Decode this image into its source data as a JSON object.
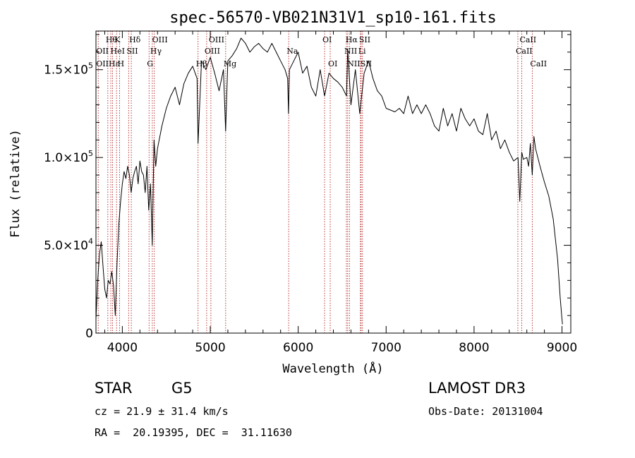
{
  "chart_data": {
    "type": "line",
    "title": "spec-56570-VB021N31V1_sp10-161.fits",
    "xlabel": "Wavelength (Å)",
    "ylabel": "Flux (relative)",
    "xlim": [
      3700,
      9100
    ],
    "ylim": [
      0,
      172000
    ],
    "x_ticks": [
      {
        "value": 4000,
        "label": "4000"
      },
      {
        "value": 5000,
        "label": "5000"
      },
      {
        "value": 6000,
        "label": "6000"
      },
      {
        "value": 7000,
        "label": "7000"
      },
      {
        "value": 8000,
        "label": "8000"
      },
      {
        "value": 9000,
        "label": "9000"
      }
    ],
    "y_ticks": [
      {
        "value": 0,
        "mantissa": "0",
        "exp": ""
      },
      {
        "value": 50000,
        "mantissa": "5.0×10",
        "exp": "4"
      },
      {
        "value": 100000,
        "mantissa": "1.0×10",
        "exp": "5"
      },
      {
        "value": 150000,
        "mantissa": "1.5×10",
        "exp": "5"
      }
    ],
    "series": [
      {
        "name": "flux",
        "x": [
          3700,
          3720,
          3740,
          3760,
          3780,
          3800,
          3820,
          3840,
          3860,
          3880,
          3900,
          3920,
          3940,
          3960,
          3980,
          4000,
          4020,
          4040,
          4060,
          4080,
          4100,
          4120,
          4140,
          4160,
          4180,
          4200,
          4220,
          4240,
          4260,
          4280,
          4300,
          4320,
          4340,
          4360,
          4380,
          4400,
          4450,
          4500,
          4550,
          4600,
          4650,
          4700,
          4750,
          4800,
          4850,
          4861,
          4900,
          4950,
          5000,
          5050,
          5100,
          5150,
          5175,
          5200,
          5250,
          5300,
          5350,
          5400,
          5450,
          5500,
          5550,
          5600,
          5650,
          5700,
          5750,
          5800,
          5850,
          5880,
          5890,
          5900,
          5950,
          6000,
          6050,
          6100,
          6150,
          6200,
          6250,
          6300,
          6350,
          6400,
          6450,
          6500,
          6550,
          6563,
          6600,
          6650,
          6700,
          6750,
          6800,
          6850,
          6900,
          6950,
          7000,
          7050,
          7100,
          7150,
          7200,
          7250,
          7300,
          7350,
          7400,
          7450,
          7500,
          7550,
          7600,
          7650,
          7700,
          7750,
          7800,
          7850,
          7900,
          7950,
          8000,
          8050,
          8100,
          8150,
          8200,
          8250,
          8300,
          8350,
          8400,
          8450,
          8500,
          8520,
          8542,
          8560,
          8600,
          8620,
          8640,
          8662,
          8680,
          8700,
          8750,
          8800,
          8850,
          8900,
          8950,
          8980,
          9000,
          9005
        ],
        "y": [
          8000,
          30000,
          45000,
          52000,
          38000,
          25000,
          20000,
          30000,
          28000,
          35000,
          27000,
          10000,
          40000,
          62000,
          75000,
          85000,
          92000,
          88000,
          95000,
          90000,
          80000,
          88000,
          92000,
          95000,
          85000,
          98000,
          92000,
          90000,
          80000,
          95000,
          70000,
          85000,
          50000,
          110000,
          95000,
          105000,
          118000,
          128000,
          135000,
          140000,
          130000,
          142000,
          148000,
          152000,
          145000,
          108000,
          155000,
          150000,
          157000,
          148000,
          138000,
          150000,
          115000,
          155000,
          158000,
          162000,
          168000,
          165000,
          160000,
          163000,
          165000,
          162000,
          160000,
          165000,
          160000,
          155000,
          150000,
          145000,
          125000,
          150000,
          155000,
          160000,
          148000,
          152000,
          140000,
          135000,
          150000,
          135000,
          148000,
          145000,
          143000,
          140000,
          135000,
          162000,
          130000,
          150000,
          125000,
          148000,
          155000,
          145000,
          138000,
          135000,
          128000,
          127000,
          126000,
          128000,
          125000,
          135000,
          125000,
          130000,
          125000,
          130000,
          125000,
          118000,
          115000,
          128000,
          118000,
          125000,
          115000,
          128000,
          122000,
          118000,
          122000,
          115000,
          113000,
          125000,
          110000,
          115000,
          105000,
          110000,
          103000,
          98000,
          100000,
          75000,
          103000,
          99000,
          100000,
          95000,
          108000,
          90000,
          112000,
          105000,
          95000,
          86000,
          78000,
          65000,
          42000,
          20000,
          8000,
          5000
        ]
      }
    ],
    "line_markers": [
      {
        "x": 3726,
        "labels": [
          {
            "text": "OII",
            "row": 2
          },
          {
            "text": "OII",
            "row": 3
          }
        ]
      },
      {
        "x": 3835,
        "labels": [
          {
            "text": "Hθ",
            "row": 1
          }
        ]
      },
      {
        "x": 3869,
        "labels": [
          {
            "text": "Hε",
            "row": 3
          }
        ]
      },
      {
        "x": 3889,
        "labels": [
          {
            "text": "HeI",
            "row": 2
          }
        ]
      },
      {
        "x": 3934,
        "labels": [
          {
            "text": "K",
            "row": 1
          }
        ]
      },
      {
        "x": 3969,
        "labels": [
          {
            "text": "H",
            "row": 3
          }
        ]
      },
      {
        "x": 4072,
        "labels": [
          {
            "text": "SII",
            "row": 2
          }
        ]
      },
      {
        "x": 4102,
        "labels": [
          {
            "text": "Hδ",
            "row": 1
          }
        ]
      },
      {
        "x": 4304,
        "labels": [
          {
            "text": "G",
            "row": 3
          }
        ]
      },
      {
        "x": 4341,
        "labels": [
          {
            "text": "Hγ",
            "row": 2
          }
        ]
      },
      {
        "x": 4363,
        "labels": [
          {
            "text": "OIII",
            "row": 1
          }
        ]
      },
      {
        "x": 4861,
        "labels": [
          {
            "text": "Hβ",
            "row": 3
          }
        ]
      },
      {
        "x": 4959,
        "labels": [
          {
            "text": "OIII",
            "row": 2
          }
        ]
      },
      {
        "x": 5007,
        "labels": [
          {
            "text": "OIII",
            "row": 1
          }
        ]
      },
      {
        "x": 5175,
        "labels": [
          {
            "text": "Mg",
            "row": 3
          }
        ]
      },
      {
        "x": 5892,
        "labels": [
          {
            "text": "Na",
            "row": 2
          }
        ]
      },
      {
        "x": 6300,
        "labels": [
          {
            "text": "OI",
            "row": 1
          }
        ]
      },
      {
        "x": 6364,
        "labels": [
          {
            "text": "OI",
            "row": 3
          }
        ]
      },
      {
        "x": 6548,
        "labels": [
          {
            "text": "NII",
            "row": 2
          }
        ]
      },
      {
        "x": 6563,
        "labels": [
          {
            "text": "Hα",
            "row": 1
          }
        ]
      },
      {
        "x": 6583,
        "labels": [
          {
            "text": "NII",
            "row": 3
          }
        ]
      },
      {
        "x": 6707,
        "labels": [
          {
            "text": "Li",
            "row": 2
          }
        ]
      },
      {
        "x": 6716,
        "labels": [
          {
            "text": "SII",
            "row": 1
          }
        ]
      },
      {
        "x": 6731,
        "labels": [
          {
            "text": "SII",
            "row": 3
          }
        ]
      },
      {
        "x": 8498,
        "labels": [
          {
            "text": "CaII",
            "row": 2
          }
        ]
      },
      {
        "x": 8542,
        "labels": [
          {
            "text": "CaII",
            "row": 1
          }
        ]
      },
      {
        "x": 8662,
        "labels": [
          {
            "text": "CaII",
            "row": 3
          }
        ]
      }
    ],
    "colors": {
      "curve": "#000000",
      "markers": "#b22222",
      "axes": "#000000"
    }
  },
  "info": {
    "class": "STAR",
    "subclass": "G5",
    "survey": "LAMOST DR3",
    "cz": "cz = 21.9 ± 31.4 km/s",
    "obs_date": "Obs-Date: 20131004",
    "radec": "RA =  20.19395, DEC =  31.11630"
  }
}
